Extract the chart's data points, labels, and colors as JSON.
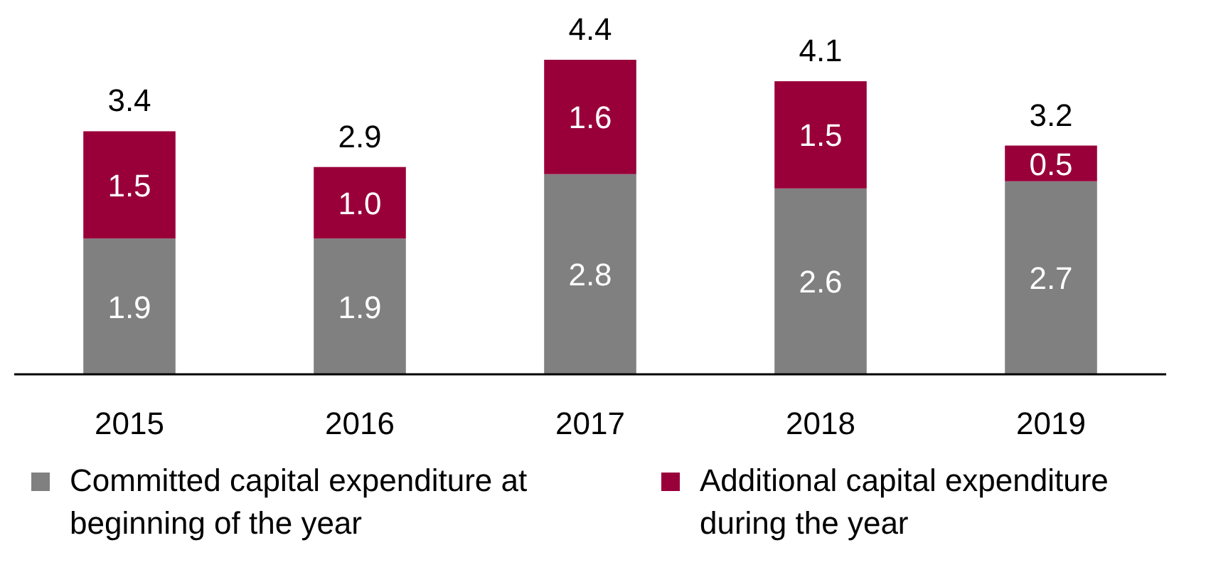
{
  "chart_data": {
    "type": "bar",
    "stacked": true,
    "categories": [
      "2015",
      "2016",
      "2017",
      "2018",
      "2019"
    ],
    "series": [
      {
        "name": "Committed capital expenditure at beginning of the year",
        "color": "#808080",
        "values": [
          1.9,
          1.9,
          2.8,
          2.6,
          2.7
        ],
        "value_labels": [
          "1.9",
          "1.9",
          "2.8",
          "2.6",
          "2.7"
        ]
      },
      {
        "name": "Additional capital expenditure during the year",
        "color": "#99003a",
        "values": [
          1.5,
          1.0,
          1.6,
          1.5,
          0.5
        ],
        "value_labels": [
          "1.5",
          "1.0",
          "1.6",
          "1.5",
          "0.5"
        ]
      }
    ],
    "totals": [
      "3.4",
      "2.9",
      "4.4",
      "4.1",
      "3.2"
    ],
    "legend": "bottom"
  }
}
